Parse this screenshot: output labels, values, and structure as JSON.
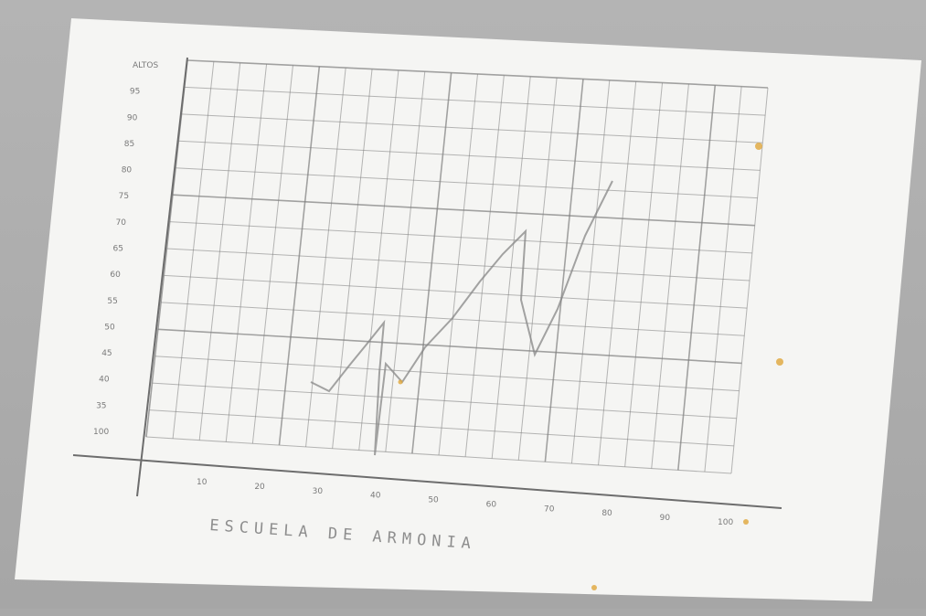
{
  "photo": {
    "subject": "pencil line graph on a white card",
    "colors": {
      "backdrop": "#a9a9a9",
      "paper": "#f4f4f2",
      "ink": "#7e7e7e",
      "stain": "#e0a63a"
    }
  },
  "graph": {
    "y_top_label": "ALTOS",
    "y_bottom_label": "100",
    "y_ticks": [
      "95",
      "90",
      "85",
      "80",
      "75",
      "70",
      "65",
      "60",
      "55",
      "50",
      "45",
      "40",
      "35"
    ],
    "x_ticks": [
      "10",
      "20",
      "30",
      "40",
      "50",
      "60",
      "70",
      "80",
      "90",
      "100"
    ],
    "caption": "ESCUELA DE ARMONIA"
  }
}
